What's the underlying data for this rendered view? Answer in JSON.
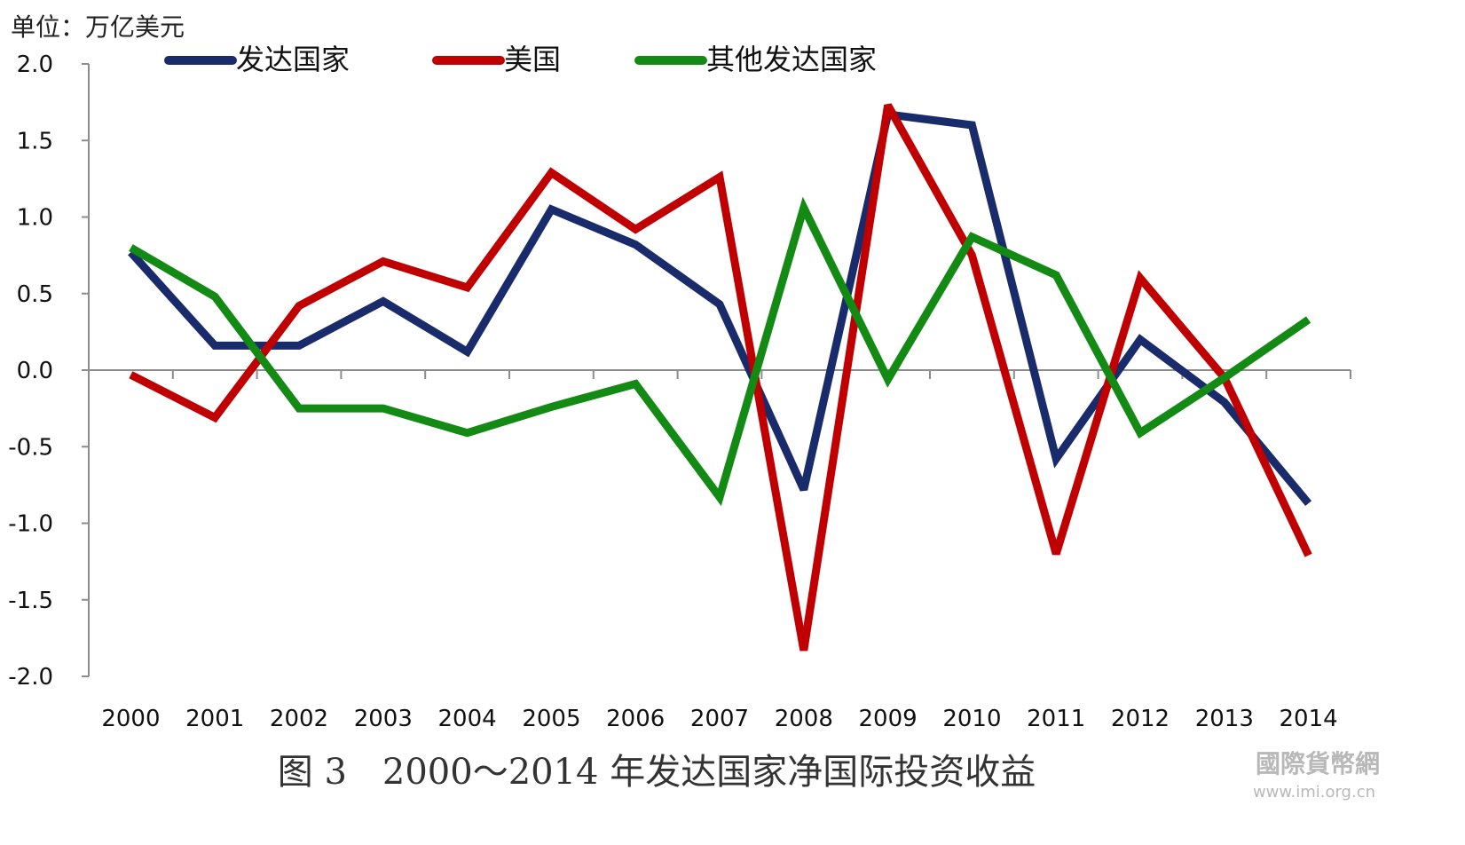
{
  "chart_data": {
    "type": "line",
    "unit_label": "单位：万亿美元",
    "categories": [
      "2000",
      "2001",
      "2002",
      "2003",
      "2004",
      "2005",
      "2006",
      "2007",
      "2008",
      "2009",
      "2010",
      "2011",
      "2012",
      "2013",
      "2014"
    ],
    "ylim": [
      -2.0,
      2.0
    ],
    "yticks": [
      "2.0",
      "1.5",
      "1.0",
      "0.5",
      "0.0",
      "-0.5",
      "-1.0",
      "-1.5",
      "-2.0"
    ],
    "ytick_values": [
      2.0,
      1.5,
      1.0,
      0.5,
      0.0,
      -0.5,
      -1.0,
      -1.5,
      -2.0
    ],
    "grid": false,
    "legend_position": "top",
    "series": [
      {
        "name": "发达国家",
        "color": "#1a2b6b",
        "values": [
          0.77,
          0.16,
          0.16,
          0.45,
          0.12,
          1.05,
          0.82,
          0.43,
          -0.78,
          1.67,
          1.6,
          -0.58,
          0.2,
          -0.21,
          -0.87
        ]
      },
      {
        "name": "美国",
        "color": "#c00000",
        "values": [
          -0.03,
          -0.31,
          0.42,
          0.71,
          0.54,
          1.29,
          0.92,
          1.26,
          -1.83,
          1.73,
          0.75,
          -1.2,
          0.6,
          -0.05,
          -1.21
        ]
      },
      {
        "name": "其他发达国家",
        "color": "#138a13",
        "values": [
          0.8,
          0.48,
          -0.25,
          -0.25,
          -0.41,
          -0.24,
          -0.09,
          -0.83,
          1.06,
          -0.06,
          0.87,
          0.62,
          -0.41,
          -0.05,
          0.33
        ]
      }
    ]
  },
  "caption": "图 3　2000～2014 年发达国家净国际投资收益",
  "watermark": {
    "name": "國際貨幣網",
    "url": "www.imi.org.cn"
  }
}
